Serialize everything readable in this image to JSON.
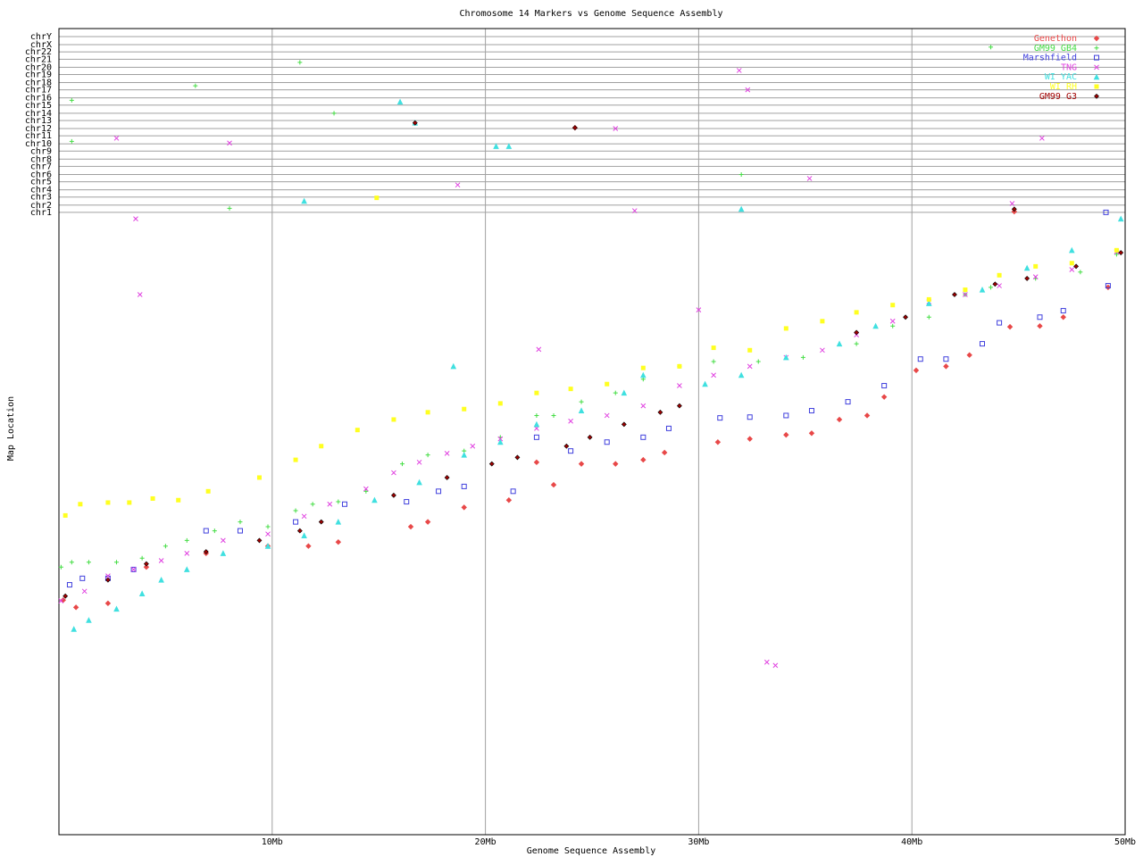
{
  "chart_data": {
    "type": "scatter",
    "title": "Chromosome 14 Markers vs Genome Sequence Assembly",
    "x_label": "Genome Sequence Assembly",
    "y_label": "Map Location",
    "xlim": [
      0,
      50
    ],
    "ylim": [
      0,
      100
    ],
    "grid": true,
    "legend": "top-right",
    "xticks": [
      {
        "value": 10,
        "label": "10Mb"
      },
      {
        "value": 20,
        "label": "20Mb"
      },
      {
        "value": 30,
        "label": "30Mb"
      },
      {
        "value": 40,
        "label": "40Mb"
      },
      {
        "value": 50,
        "label": "50Mb"
      }
    ],
    "yticks": [
      {
        "value": 77.2,
        "label": "chr1"
      },
      {
        "value": 78.1,
        "label": "chr2"
      },
      {
        "value": 79.1,
        "label": "chr3"
      },
      {
        "value": 80.0,
        "label": "chr4"
      },
      {
        "value": 81.0,
        "label": "chr5"
      },
      {
        "value": 81.9,
        "label": "chr6"
      },
      {
        "value": 82.9,
        "label": "chr7"
      },
      {
        "value": 83.8,
        "label": "chr8"
      },
      {
        "value": 84.8,
        "label": "chr9"
      },
      {
        "value": 85.7,
        "label": "chr10"
      },
      {
        "value": 86.7,
        "label": "chr11"
      },
      {
        "value": 87.6,
        "label": "chr12"
      },
      {
        "value": 88.6,
        "label": "chr13"
      },
      {
        "value": 89.5,
        "label": "chr14"
      },
      {
        "value": 90.5,
        "label": "chr15"
      },
      {
        "value": 91.4,
        "label": "chr16"
      },
      {
        "value": 92.4,
        "label": "chr17"
      },
      {
        "value": 93.3,
        "label": "chr18"
      },
      {
        "value": 94.3,
        "label": "chr19"
      },
      {
        "value": 95.2,
        "label": "chr20"
      },
      {
        "value": 96.2,
        "label": "chr21"
      },
      {
        "value": 97.1,
        "label": "chr22"
      },
      {
        "value": 98.0,
        "label": "chrX"
      },
      {
        "value": 99.0,
        "label": "chrY"
      }
    ],
    "series": [
      {
        "name": "Genethon",
        "color": "#e84848",
        "marker": "diamond",
        "x": [
          0.2,
          0.8,
          2.3,
          4.1,
          6.9,
          9.8,
          11.7,
          13.1,
          16.5,
          17.3,
          19.0,
          21.1,
          22.4,
          23.2,
          24.5,
          26.1,
          27.4,
          28.4,
          30.9,
          32.4,
          34.1,
          35.3,
          36.6,
          37.9,
          38.7,
          40.2,
          41.6,
          42.7,
          44.6,
          46.0,
          47.1,
          49.2,
          44.8,
          24.2
        ],
        "values": [
          29.1,
          28.2,
          28.7,
          33.2,
          34.9,
          35.8,
          35.8,
          36.3,
          38.2,
          38.8,
          40.6,
          41.5,
          46.2,
          43.4,
          46.0,
          46.0,
          46.5,
          47.4,
          48.7,
          49.1,
          49.6,
          49.8,
          51.5,
          52.0,
          54.3,
          57.6,
          58.1,
          59.5,
          63.0,
          63.1,
          64.2,
          67.9,
          77.3,
          87.7
        ]
      },
      {
        "name": "GM99 GB4",
        "color": "#44dd44",
        "marker": "plus",
        "x": [
          0.1,
          0.6,
          1.4,
          2.7,
          3.9,
          5.0,
          6.0,
          7.3,
          8.5,
          9.8,
          11.1,
          11.9,
          13.1,
          14.4,
          16.1,
          17.3,
          19.0,
          20.7,
          22.4,
          23.2,
          24.5,
          26.1,
          27.4,
          29.1,
          30.7,
          32.8,
          34.9,
          37.4,
          39.1,
          40.8,
          42.5,
          43.7,
          45.8,
          47.9,
          49.6,
          0.6,
          0.6,
          6.4,
          11.3,
          12.9,
          8.0,
          32.0,
          43.7
        ],
        "values": [
          33.2,
          33.8,
          33.8,
          33.8,
          34.3,
          35.8,
          36.5,
          37.7,
          38.8,
          38.2,
          40.2,
          41.0,
          41.3,
          42.6,
          46.0,
          47.1,
          47.6,
          49.3,
          52.0,
          52.0,
          53.7,
          54.8,
          56.5,
          58.1,
          58.7,
          58.7,
          59.2,
          60.9,
          63.1,
          64.2,
          67.0,
          67.9,
          69.0,
          69.8,
          72.0,
          86.0,
          91.1,
          92.9,
          95.8,
          89.5,
          77.7,
          81.9,
          97.7
        ]
      },
      {
        "name": "Marshfield",
        "color": "#4040dd",
        "marker": "square",
        "x": [
          0.5,
          1.1,
          2.3,
          3.5,
          6.9,
          8.5,
          11.1,
          13.4,
          16.3,
          17.8,
          19.0,
          21.3,
          22.4,
          24.0,
          25.7,
          27.4,
          28.6,
          31.0,
          32.4,
          34.1,
          35.3,
          37.0,
          38.7,
          40.4,
          41.6,
          43.3,
          44.1,
          46.0,
          47.1,
          49.2,
          49.1
        ],
        "values": [
          31.0,
          31.8,
          31.8,
          32.9,
          37.7,
          37.7,
          38.8,
          41.0,
          41.3,
          42.6,
          43.2,
          42.6,
          49.3,
          47.6,
          48.7,
          49.3,
          50.4,
          51.7,
          51.8,
          52.0,
          52.6,
          53.7,
          55.7,
          59.0,
          59.0,
          60.9,
          63.5,
          64.2,
          65.0,
          68.1,
          77.2
        ]
      },
      {
        "name": "TNG",
        "color": "#e040e0",
        "marker": "cross",
        "x": [
          0.1,
          1.2,
          2.3,
          3.5,
          4.8,
          6.0,
          7.7,
          9.8,
          11.5,
          12.7,
          14.4,
          15.7,
          16.9,
          18.2,
          19.4,
          20.7,
          22.4,
          24.0,
          25.7,
          27.4,
          29.1,
          30.0,
          30.7,
          32.4,
          34.1,
          35.8,
          37.4,
          39.1,
          40.8,
          42.5,
          44.1,
          45.8,
          47.5,
          49.6,
          33.2,
          33.6,
          3.8,
          3.6,
          2.7,
          8.0,
          18.7,
          35.2,
          31.9,
          32.3,
          26.1,
          46.1,
          27.0,
          44.7,
          22.5
        ],
        "values": [
          29.0,
          30.2,
          32.1,
          32.9,
          34.0,
          34.9,
          36.5,
          37.3,
          39.5,
          41.0,
          42.9,
          44.9,
          46.2,
          47.3,
          48.2,
          49.1,
          50.4,
          51.3,
          52.0,
          53.2,
          55.7,
          65.1,
          57.0,
          58.1,
          59.2,
          60.1,
          62.0,
          63.7,
          66.1,
          67.0,
          68.1,
          69.2,
          70.1,
          72.3,
          21.4,
          21.0,
          67.0,
          76.4,
          86.4,
          85.8,
          80.6,
          81.4,
          94.8,
          92.4,
          87.6,
          86.4,
          77.4,
          78.3,
          60.2
        ]
      },
      {
        "name": "WI YAC",
        "color": "#40e0e0",
        "marker": "triangle",
        "x": [
          0.7,
          1.4,
          2.7,
          3.9,
          4.8,
          6.0,
          7.7,
          9.8,
          11.5,
          13.1,
          14.8,
          16.9,
          18.5,
          19.0,
          20.7,
          22.4,
          24.5,
          26.5,
          27.4,
          30.3,
          32.0,
          34.1,
          36.6,
          38.3,
          40.8,
          43.3,
          45.4,
          47.5,
          49.8,
          16.0,
          16.7,
          20.5,
          21.1,
          11.5,
          32.0
        ],
        "values": [
          25.5,
          26.6,
          28.0,
          29.9,
          31.6,
          32.9,
          34.9,
          35.8,
          37.1,
          38.8,
          41.5,
          43.7,
          58.1,
          47.1,
          48.7,
          50.9,
          52.6,
          54.8,
          57.0,
          55.9,
          57.0,
          59.2,
          60.9,
          63.1,
          65.9,
          67.6,
          70.3,
          72.5,
          76.4,
          90.9,
          88.3,
          85.4,
          85.4,
          78.6,
          77.6
        ]
      },
      {
        "name": "WI RH",
        "color": "#ffff20",
        "marker": "dot",
        "x": [
          0.3,
          1.0,
          2.3,
          3.3,
          4.4,
          5.6,
          7.0,
          9.4,
          11.1,
          12.3,
          14.0,
          15.7,
          17.3,
          19.0,
          20.7,
          22.4,
          24.0,
          25.7,
          27.4,
          29.1,
          30.7,
          32.4,
          34.1,
          35.8,
          37.4,
          39.1,
          40.8,
          42.5,
          44.1,
          45.8,
          47.5,
          49.6,
          14.9
        ],
        "values": [
          39.6,
          41.0,
          41.2,
          41.2,
          41.7,
          41.5,
          42.6,
          44.3,
          46.5,
          48.2,
          50.2,
          51.5,
          52.4,
          52.8,
          53.5,
          54.8,
          55.3,
          55.9,
          57.9,
          58.1,
          60.4,
          60.1,
          62.8,
          63.7,
          64.8,
          65.7,
          66.4,
          67.6,
          69.4,
          70.5,
          70.9,
          72.5,
          79.0
        ]
      },
      {
        "name": "GM99 G3",
        "color": "#a00000",
        "marker": "diamond-filled",
        "x": [
          0.3,
          2.3,
          4.1,
          6.9,
          9.4,
          11.3,
          12.3,
          15.7,
          18.2,
          20.3,
          21.5,
          23.8,
          24.9,
          26.5,
          28.2,
          29.1,
          37.4,
          39.7,
          42.0,
          43.9,
          45.4,
          47.7,
          49.8,
          16.7,
          24.2,
          44.8
        ],
        "values": [
          29.6,
          31.6,
          33.6,
          35.1,
          36.5,
          37.7,
          38.8,
          42.1,
          44.3,
          46.0,
          46.8,
          48.2,
          49.3,
          50.9,
          52.4,
          53.2,
          62.3,
          64.2,
          67.0,
          68.3,
          69.0,
          70.5,
          72.2,
          88.3,
          87.7,
          77.6
        ]
      }
    ]
  }
}
